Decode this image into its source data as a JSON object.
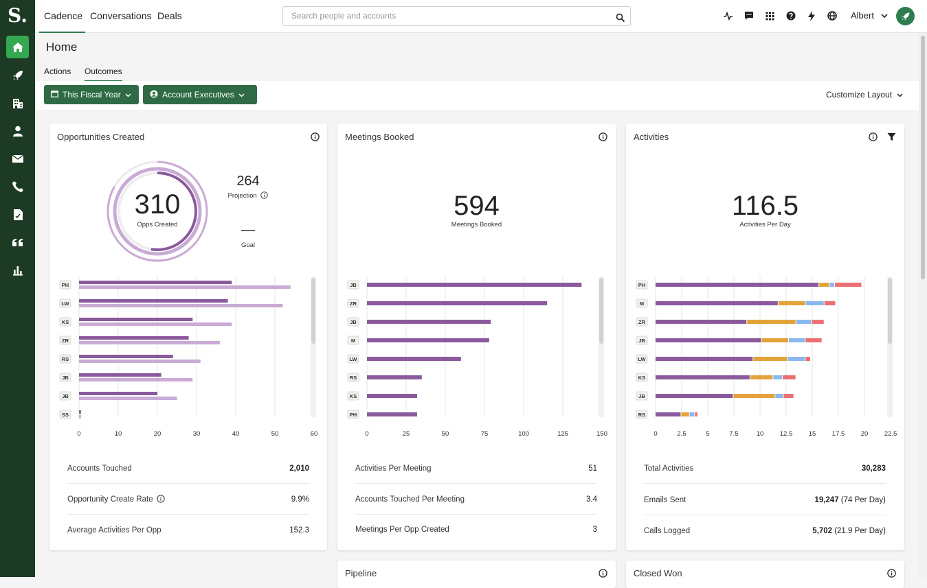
{
  "app": {
    "logo": "S."
  },
  "nav": {
    "tabs": [
      "Cadence",
      "Conversations",
      "Deals"
    ],
    "active": "Cadence"
  },
  "search": {
    "placeholder": "Search people and accounts"
  },
  "user": {
    "name": "Albert"
  },
  "page": {
    "title": "Home",
    "tabs": [
      "Actions",
      "Outcomes"
    ],
    "active_tab": "Outcomes"
  },
  "filters": {
    "period": "This Fiscal Year",
    "team": "Account Executives",
    "customize": "Customize Layout"
  },
  "colors": {
    "accent": "#2e7d4f",
    "purple": "#8a5a9c",
    "purple_light": "#c9abd6",
    "orange": "#e3a33a",
    "blue": "#8ab8ee",
    "red": "#ec6f72"
  },
  "cards": {
    "opps": {
      "title": "Opportunities Created",
      "value": "310",
      "value_label": "Opps Created",
      "projection": "264",
      "projection_label": "Projection",
      "goal": "—",
      "goal_label": "Goal",
      "stats": [
        {
          "label": "Accounts Touched",
          "value": "2,010"
        },
        {
          "label": "Opportunity Create Rate",
          "value": "9.9%"
        },
        {
          "label": "Average Activities Per Opp",
          "value": "152.3"
        }
      ]
    },
    "meetings": {
      "title": "Meetings Booked",
      "value": "594",
      "value_label": "Meetings Booked",
      "stats": [
        {
          "label": "Activities Per Meeting",
          "value": "51"
        },
        {
          "label": "Accounts Touched Per Meeting",
          "value": "3.4"
        },
        {
          "label": "Meetings Per Opp Created",
          "value": "3"
        }
      ]
    },
    "activities": {
      "title": "Activities",
      "value": "116.5",
      "value_label": "Activities Per Day",
      "stats": [
        {
          "label": "Total Activities",
          "value": "30,283",
          "extra": ""
        },
        {
          "label": "Emails Sent",
          "value": "19,247",
          "extra": " (74 Per Day)"
        },
        {
          "label": "Calls Logged",
          "value": "5,702",
          "extra": " (21.9 Per Day)"
        }
      ]
    },
    "pipeline": {
      "title": "Pipeline"
    },
    "closed": {
      "title": "Closed Won"
    }
  },
  "chart_data": [
    {
      "type": "bar",
      "categories": [
        "PH",
        "LW",
        "KS",
        "ZR",
        "RS",
        "JB",
        "JB",
        "SS"
      ],
      "series": [
        {
          "values": [
            39,
            38,
            29,
            28,
            24,
            21,
            20,
            0.5
          ]
        },
        {
          "values": [
            54,
            52,
            39,
            36,
            31,
            29,
            25,
            0.5
          ]
        }
      ],
      "xticks": [
        0,
        10,
        20,
        30,
        40,
        50,
        60
      ],
      "xlim": [
        0,
        60
      ]
    },
    {
      "type": "bar",
      "categories": [
        "JB",
        "ZR",
        "JB",
        "M",
        "LW",
        "RS",
        "KS",
        "PH"
      ],
      "values": [
        137,
        115,
        79,
        78,
        60,
        35,
        32,
        32
      ],
      "xticks": [
        0,
        25,
        50,
        75,
        100,
        125,
        150
      ],
      "xlim": [
        0,
        150
      ]
    },
    {
      "type": "bar",
      "stacked": true,
      "categories": [
        "PH",
        "M",
        "ZR",
        "JB",
        "LW",
        "KS",
        "JB",
        "RS"
      ],
      "series": [
        {
          "values": [
            15.6,
            11.7,
            8.7,
            10.1,
            9.3,
            9.0,
            7.4,
            2.4
          ]
        },
        {
          "values": [
            1.0,
            2.6,
            4.7,
            2.6,
            3.3,
            2.2,
            4.0,
            0.8
          ]
        },
        {
          "values": [
            0.5,
            1.8,
            1.5,
            1.6,
            1.7,
            0.9,
            0.8,
            0.5
          ]
        },
        {
          "values": [
            2.6,
            1.1,
            1.2,
            1.6,
            0.5,
            1.3,
            1.0,
            0.3
          ]
        }
      ],
      "xticks": [
        "0",
        "2.5",
        "5",
        "7.5",
        "10",
        "12.5",
        "15",
        "17.5",
        "20",
        "22.5"
      ],
      "xlim": [
        0,
        22.5
      ]
    }
  ]
}
